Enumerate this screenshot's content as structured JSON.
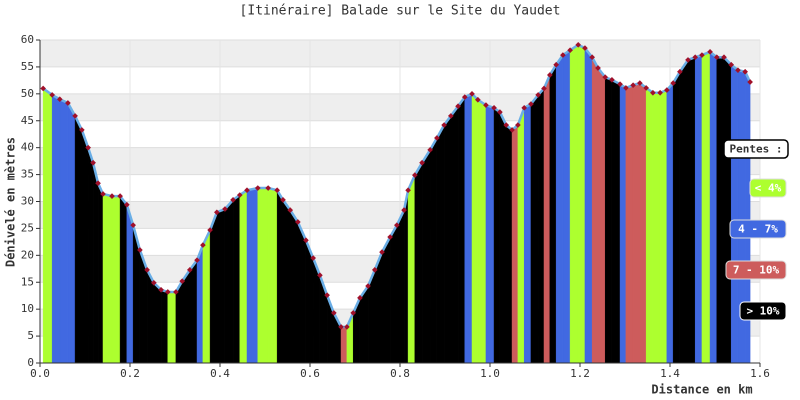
{
  "chart_data": {
    "type": "area",
    "title": "[Itinéraire] Balade sur le Site du Yaudet",
    "x_label": "Distance en km",
    "y_label": "Dénivelé en mètres",
    "xlim": [
      0,
      1.6
    ],
    "xticks": [
      {
        "value": 0,
        "label": "0.0"
      },
      0.2,
      0.4,
      0.6,
      0.8,
      {
        "value": 1,
        "label": "1.0"
      },
      1.2,
      1.4,
      1.6
    ],
    "ylim": [
      0,
      60
    ],
    "yticks": [
      0,
      5,
      10,
      15,
      20,
      25,
      30,
      35,
      40,
      45,
      50,
      55,
      60
    ],
    "grid": true,
    "line_color": "#6aaee6",
    "marker_color": "#a0102a",
    "x": [
      0.007,
      0.027,
      0.044,
      0.062,
      0.078,
      0.093,
      0.107,
      0.118,
      0.129,
      0.14,
      0.16,
      0.178,
      0.193,
      0.207,
      0.222,
      0.238,
      0.253,
      0.269,
      0.284,
      0.302,
      0.316,
      0.333,
      0.349,
      0.362,
      0.378,
      0.393,
      0.411,
      0.429,
      0.444,
      0.46,
      0.484,
      0.507,
      0.527,
      0.54,
      0.556,
      0.573,
      0.591,
      0.607,
      0.622,
      0.638,
      0.653,
      0.669,
      0.682,
      0.696,
      0.711,
      0.729,
      0.744,
      0.76,
      0.778,
      0.793,
      0.809,
      0.818,
      0.833,
      0.849,
      0.867,
      0.882,
      0.898,
      0.913,
      0.929,
      0.944,
      0.96,
      0.973,
      0.991,
      1.009,
      1.022,
      1.036,
      1.049,
      1.062,
      1.076,
      1.091,
      1.107,
      1.12,
      1.133,
      1.147,
      1.162,
      1.178,
      1.196,
      1.211,
      1.227,
      1.24,
      1.256,
      1.271,
      1.289,
      1.302,
      1.318,
      1.333,
      1.347,
      1.362,
      1.378,
      1.393,
      1.407,
      1.422,
      1.44,
      1.456,
      1.471,
      1.489,
      1.504,
      1.52,
      1.536,
      1.551,
      1.567,
      1.578
    ],
    "values": [
      51,
      49.8,
      49,
      48.3,
      45.9,
      43.3,
      40,
      37.2,
      33.4,
      31.4,
      31,
      31,
      29.4,
      25.6,
      21,
      17.3,
      14.9,
      13.6,
      13.2,
      13.2,
      15.2,
      17.3,
      19.1,
      21.9,
      24.7,
      28,
      28.6,
      30.3,
      31.2,
      32.1,
      32.5,
      32.5,
      32.1,
      30.3,
      28.4,
      26.2,
      22.8,
      19.5,
      16.3,
      12.6,
      9.3,
      6.7,
      6.7,
      9.3,
      12.1,
      14.3,
      17.3,
      20.6,
      23.4,
      25.6,
      28.4,
      32.1,
      34.9,
      37.2,
      39.6,
      41.8,
      44.2,
      45.9,
      47.7,
      49.4,
      50,
      48.9,
      47.9,
      47.4,
      46.6,
      44.2,
      43.3,
      44.2,
      47.4,
      48.1,
      49.8,
      51,
      53.5,
      55.4,
      57.2,
      58.1,
      59.1,
      58.5,
      56.8,
      54.8,
      53.1,
      52.6,
      51.8,
      51.1,
      51.6,
      52,
      51.1,
      50.2,
      50.2,
      50.7,
      52,
      54.1,
      56.3,
      56.8,
      57.2,
      57.8,
      56.8,
      56.8,
      55.4,
      54.4,
      54.1,
      52.2
    ],
    "legend_title": "Pentes :",
    "slope_classes": [
      {
        "name": "< 4%",
        "color": "#adff2f"
      },
      {
        "name": "4 - 7%",
        "color": "#4169e1"
      },
      {
        "name": "7 - 10%",
        "color": "#cd5c5c"
      },
      {
        "name": "> 10%",
        "color": "#000000"
      }
    ],
    "segment_class": [
      0,
      1,
      1,
      1,
      3,
      3,
      3,
      3,
      3,
      0,
      0,
      3,
      1,
      3,
      3,
      3,
      3,
      3,
      0,
      3,
      3,
      3,
      1,
      0,
      3,
      3,
      3,
      3,
      0,
      1,
      0,
      0,
      3,
      3,
      3,
      3,
      3,
      3,
      3,
      3,
      3,
      2,
      0,
      3,
      3,
      3,
      3,
      3,
      3,
      3,
      3,
      0,
      3,
      3,
      3,
      3,
      3,
      3,
      3,
      1,
      0,
      0,
      1,
      3,
      3,
      3,
      2,
      0,
      1,
      3,
      3,
      2,
      3,
      1,
      1,
      0,
      0,
      1,
      2,
      2,
      3,
      3,
      1,
      2,
      2,
      2,
      0,
      0,
      0,
      1,
      3,
      3,
      3,
      1,
      0,
      1,
      3,
      3,
      1,
      1,
      1
    ]
  }
}
